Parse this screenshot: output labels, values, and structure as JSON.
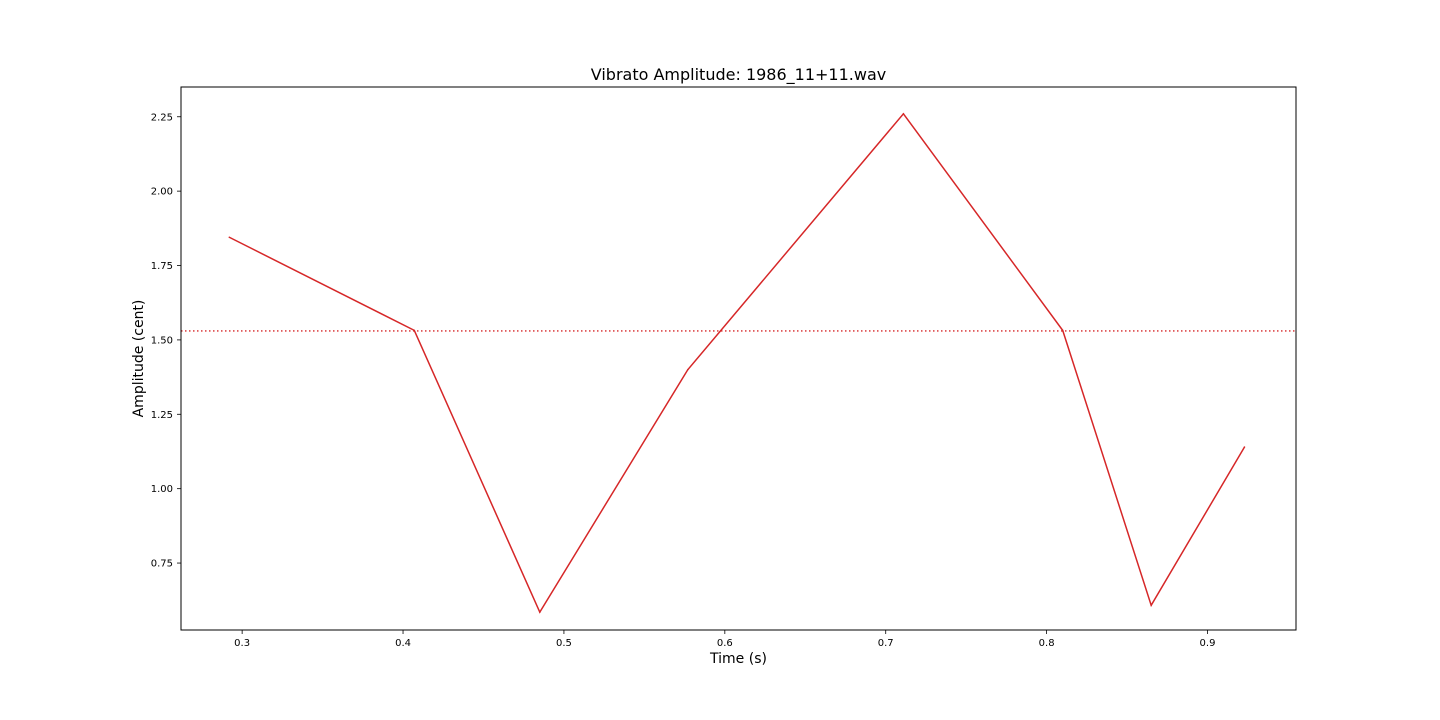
{
  "chart_data": {
    "type": "line",
    "title": "Vibrato Amplitude: 1986_11+11.wav",
    "xlabel": "Time (s)",
    "ylabel": "Amplitude (cent)",
    "xlim": [
      0.262,
      0.955
    ],
    "ylim": [
      0.525,
      2.35
    ],
    "x_ticks": [
      0.3,
      0.4,
      0.5,
      0.6,
      0.7,
      0.8,
      0.9
    ],
    "x_tick_labels": [
      "0.3",
      "0.4",
      "0.5",
      "0.6",
      "0.7",
      "0.8",
      "0.9"
    ],
    "y_ticks": [
      0.75,
      1.0,
      1.25,
      1.5,
      1.75,
      2.0,
      2.25
    ],
    "y_tick_labels": [
      "0.75",
      "1.00",
      "1.25",
      "1.50",
      "1.75",
      "2.00",
      "2.25"
    ],
    "grid": false,
    "series": [
      {
        "color": "#d62728",
        "style": "solid",
        "x": [
          0.292,
          0.407,
          0.485,
          0.577,
          0.711,
          0.81,
          0.865,
          0.923
        ],
        "y": [
          1.845,
          1.532,
          0.585,
          1.4,
          2.26,
          1.532,
          0.608,
          1.14
        ]
      }
    ],
    "reference_line": {
      "orientation": "horizontal",
      "y": 1.53,
      "color": "#d62728",
      "style": "dotted"
    }
  }
}
